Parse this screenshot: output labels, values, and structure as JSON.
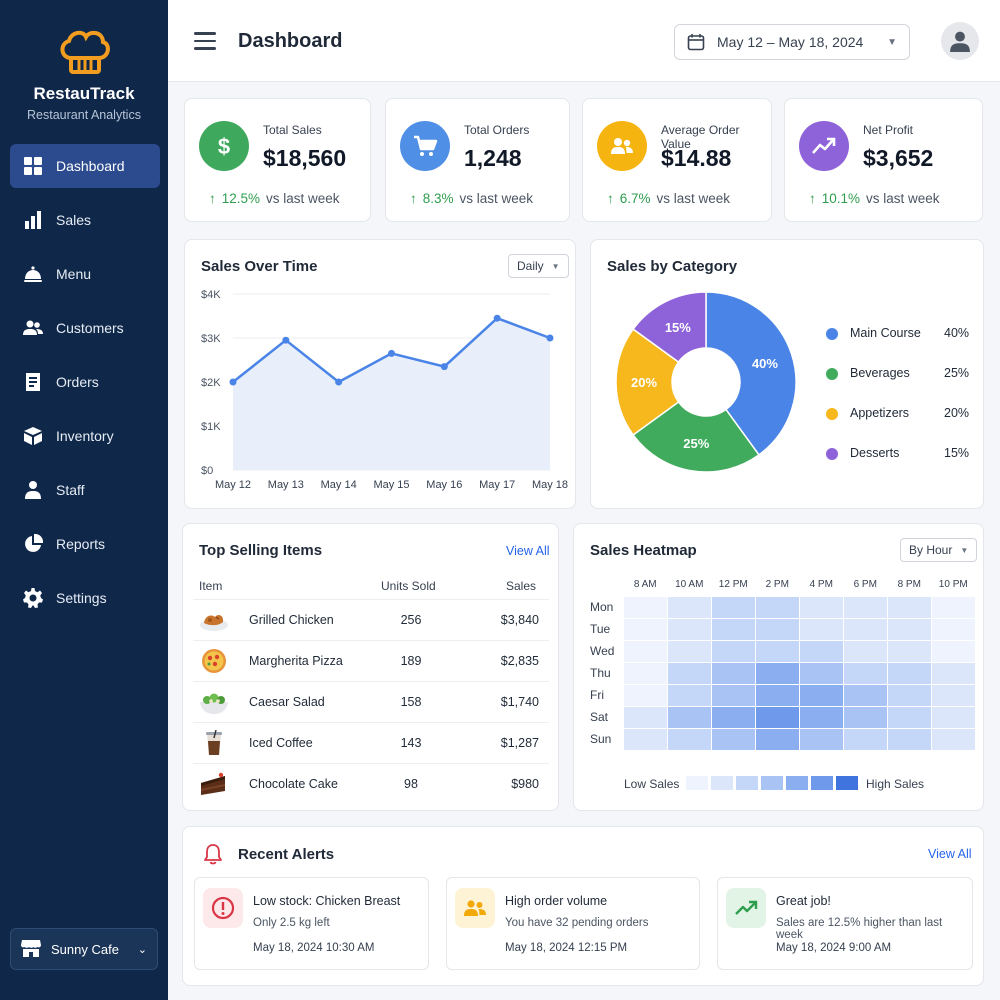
{
  "brand": {
    "name": "RestauTrack",
    "subtitle": "Restaurant Analytics"
  },
  "nav": [
    {
      "label": "Dashboard",
      "icon": "grid-icon",
      "active": true
    },
    {
      "label": "Sales",
      "icon": "bar-chart-icon"
    },
    {
      "label": "Menu",
      "icon": "cloche-icon"
    },
    {
      "label": "Customers",
      "icon": "users-icon"
    },
    {
      "label": "Orders",
      "icon": "receipt-icon"
    },
    {
      "label": "Inventory",
      "icon": "box-icon"
    },
    {
      "label": "Staff",
      "icon": "person-icon"
    },
    {
      "label": "Reports",
      "icon": "pie-icon"
    },
    {
      "label": "Settings",
      "icon": "gear-icon"
    }
  ],
  "location": {
    "label": "Sunny Cafe"
  },
  "header": {
    "title": "Dashboard",
    "date_range": "May 12 – May 18, 2024"
  },
  "kpis": [
    {
      "label": "Total Sales",
      "value": "$18,560",
      "change": "12.5%",
      "suffix": "vs last week",
      "color": "#3ea85c",
      "icon": "dollar-icon"
    },
    {
      "label": "Total Orders",
      "value": "1,248",
      "change": "8.3%",
      "suffix": "vs last week",
      "color": "#4f8fe6",
      "icon": "cart-icon"
    },
    {
      "label": "Average Order Value",
      "value": "$14.88",
      "change": "6.7%",
      "suffix": "vs last week",
      "color": "#f5b40f",
      "icon": "users-icon"
    },
    {
      "label": "Net Profit",
      "value": "$3,652",
      "change": "10.1%",
      "suffix": "vs last week",
      "color": "#8e63d9",
      "icon": "trend-up-icon"
    }
  ],
  "sales_over_time": {
    "title": "Sales Over Time",
    "filter": "Daily",
    "chart_data": {
      "type": "area",
      "x": [
        "May 12",
        "May 13",
        "May 14",
        "May 15",
        "May 16",
        "May 17",
        "May 18"
      ],
      "values": [
        2000,
        2950,
        2000,
        2650,
        2350,
        3450,
        3000
      ],
      "y_ticks": [
        "$0",
        "$1K",
        "$2K",
        "$3K",
        "$4K"
      ],
      "ylim": [
        0,
        4000
      ],
      "color": "#4a84e6"
    }
  },
  "sales_by_category": {
    "title": "Sales by Category",
    "chart_data": {
      "type": "pie",
      "labels": [
        "Main Course",
        "Beverages",
        "Appetizers",
        "Desserts"
      ],
      "values": [
        40,
        25,
        20,
        15
      ],
      "slice_labels": [
        "40%",
        "25%",
        "20%",
        "15%"
      ],
      "colors": [
        "#4a84e6",
        "#41ab5d",
        "#f6b81d",
        "#8e63d9"
      ]
    }
  },
  "top_items": {
    "title": "Top Selling Items",
    "view_all": "View All",
    "columns": [
      "Item",
      "Units Sold",
      "Sales"
    ],
    "rows": [
      {
        "name": "Grilled Chicken",
        "units": "256",
        "sales": "$3,840",
        "icon": "grilled-chicken-icon"
      },
      {
        "name": "Margherita Pizza",
        "units": "189",
        "sales": "$2,835",
        "icon": "pizza-icon"
      },
      {
        "name": "Caesar Salad",
        "units": "158",
        "sales": "$1,740",
        "icon": "salad-icon"
      },
      {
        "name": "Iced Coffee",
        "units": "143",
        "sales": "$1,287",
        "icon": "iced-coffee-icon"
      },
      {
        "name": "Chocolate Cake",
        "units": "98",
        "sales": "$980",
        "icon": "cake-icon"
      }
    ]
  },
  "heatmap": {
    "title": "Sales Heatmap",
    "filter": "By Hour",
    "hours": [
      "8 AM",
      "10 AM",
      "12 PM",
      "2 PM",
      "4 PM",
      "6 PM",
      "8 PM",
      "10 PM"
    ],
    "days": [
      "Mon",
      "Tue",
      "Wed",
      "Thu",
      "Fri",
      "Sat",
      "Sun"
    ],
    "chart_data": {
      "type": "heatmap",
      "values": [
        [
          1,
          2,
          3,
          3,
          2,
          2,
          2,
          1
        ],
        [
          1,
          2,
          3,
          3,
          2,
          2,
          2,
          1
        ],
        [
          1,
          2,
          3,
          3,
          3,
          2,
          2,
          1
        ],
        [
          1,
          3,
          4,
          5,
          4,
          3,
          3,
          2
        ],
        [
          1,
          3,
          4,
          5,
          5,
          4,
          3,
          2
        ],
        [
          2,
          4,
          5,
          6,
          5,
          4,
          3,
          2
        ],
        [
          2,
          3,
          4,
          5,
          4,
          3,
          3,
          2
        ]
      ],
      "scale": [
        "#eef3fd",
        "#dbe6fb",
        "#c5d7f8",
        "#a8c3f4",
        "#8aaef0",
        "#6f9aec"
      ]
    },
    "legend_low": "Low Sales",
    "legend_high": "High Sales",
    "legend_colors": [
      "#eef3fd",
      "#dbe6fb",
      "#c5d7f8",
      "#a8c3f4",
      "#8aaef0",
      "#6f9aec",
      "#3f74de"
    ]
  },
  "alerts": {
    "title": "Recent Alerts",
    "view_all": "View All",
    "items": [
      {
        "title": "Low stock: Chicken Breast",
        "desc": "Only 2.5 kg left",
        "time": "May 18, 2024 10:30 AM",
        "icon": "alert-circle-icon",
        "bg": "#fde8ea",
        "color": "#d93545"
      },
      {
        "title": "High order volume",
        "desc": "You have 32 pending orders",
        "time": "May 18, 2024 12:15 PM",
        "icon": "users-icon",
        "bg": "#fff3d6",
        "color": "#f2a90a"
      },
      {
        "title": "Great job!",
        "desc": "Sales are 12.5% higher than last week",
        "time": "May 18, 2024 9:00 AM",
        "icon": "trend-up-icon",
        "bg": "#e2f4e6",
        "color": "#2e9e4f"
      }
    ]
  }
}
